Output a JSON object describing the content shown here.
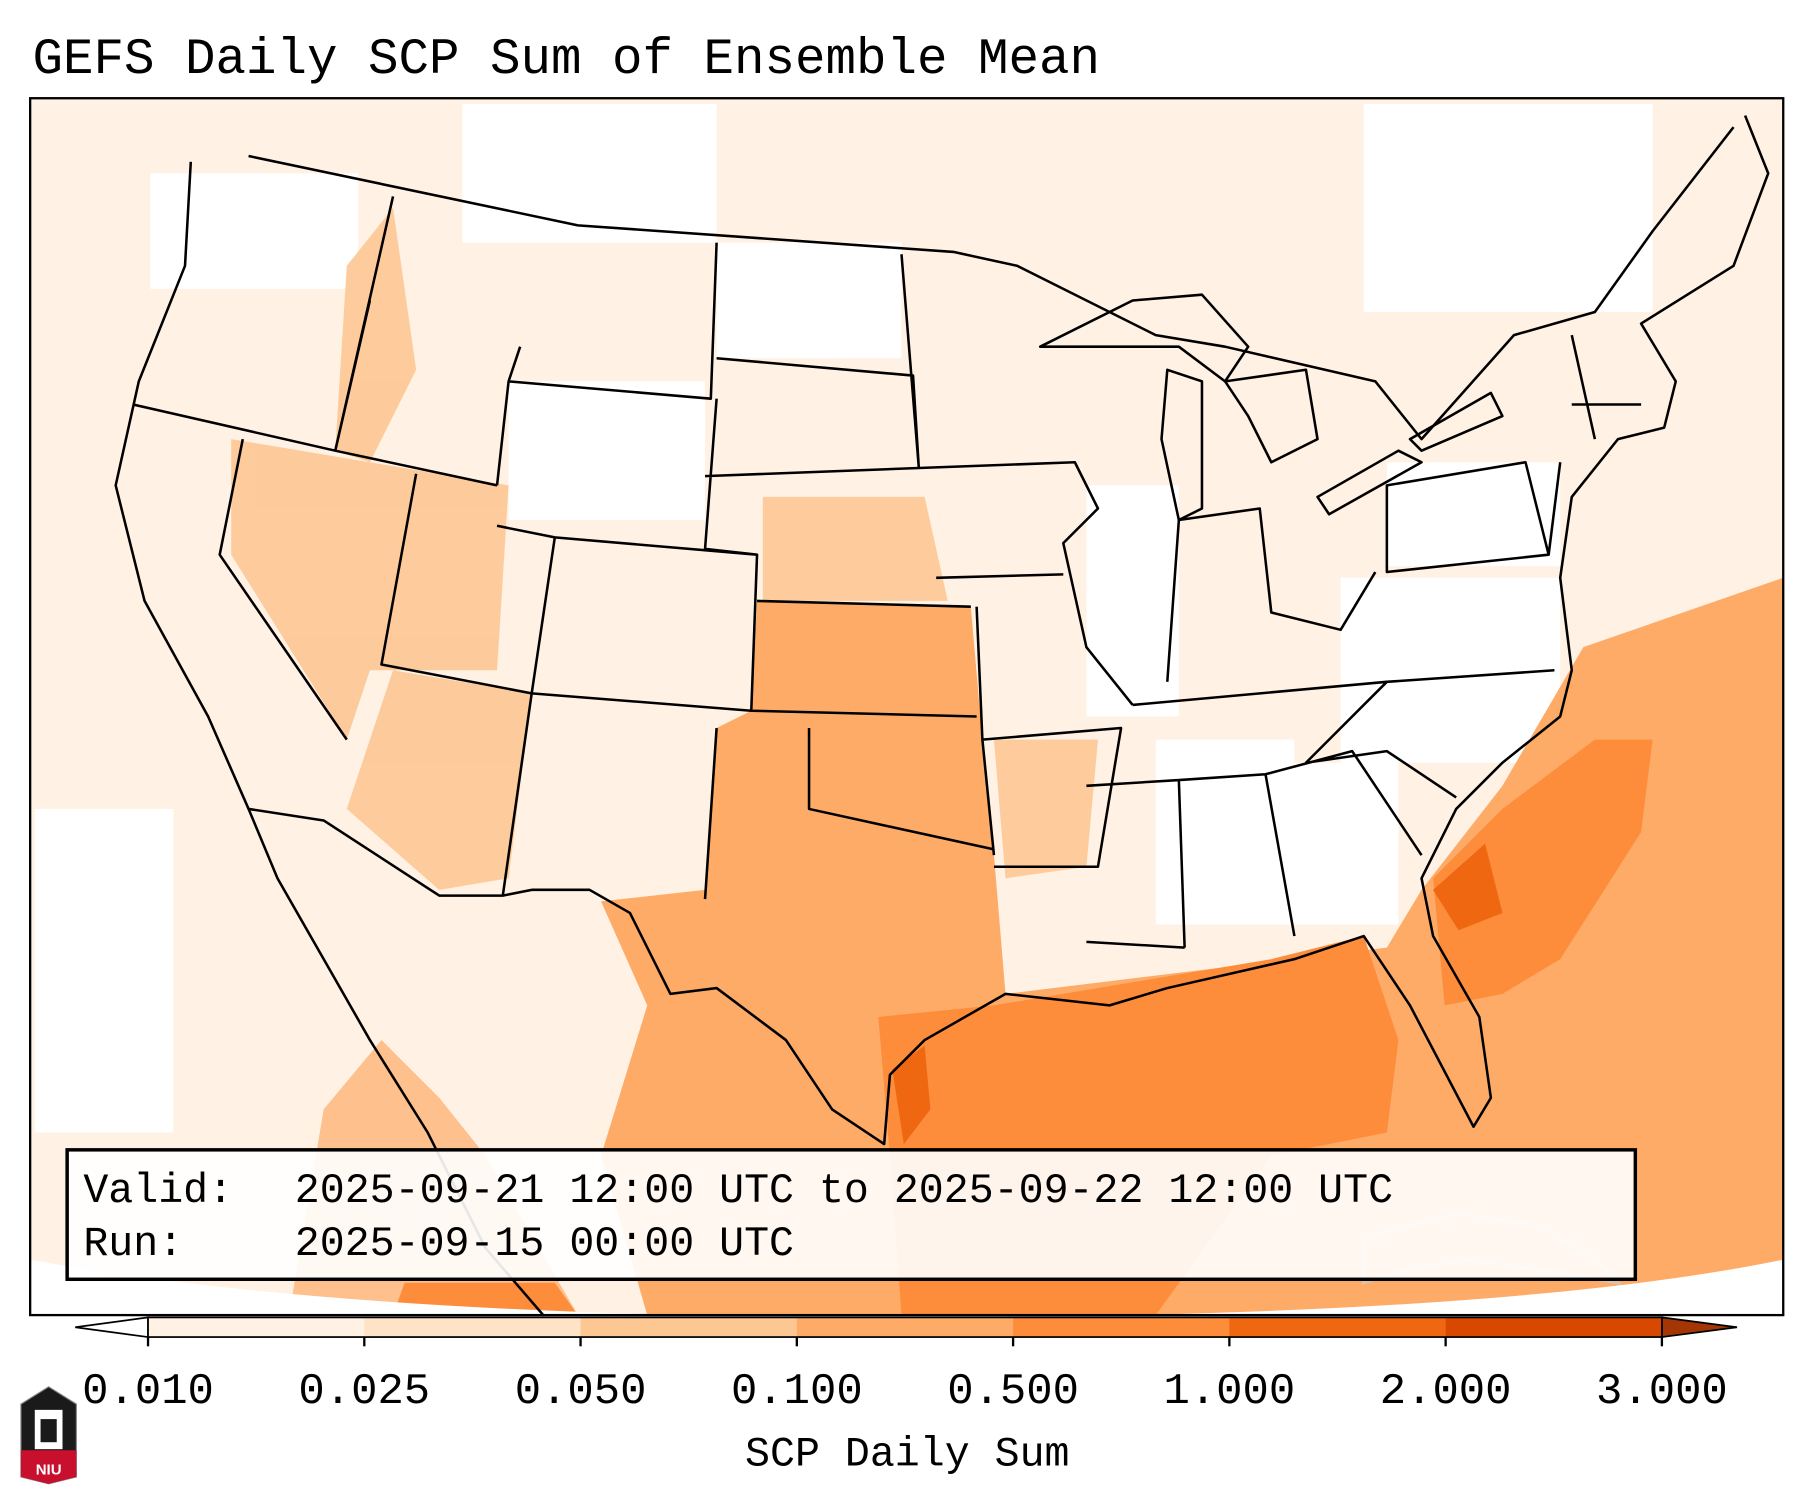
{
  "title": "GEFS Daily SCP Sum of Ensemble Mean",
  "info_box": {
    "valid_label": "Valid:",
    "valid_value": "2025-09-21 12:00 UTC to 2025-09-22 12:00 UTC",
    "run_label": "Run:",
    "run_value": "2025-09-15 00:00 UTC"
  },
  "logo": {
    "text": "NIU"
  },
  "chart_data": {
    "type": "heatmap",
    "title": "GEFS Daily SCP Sum of Ensemble Mean",
    "region": "Continental United States",
    "colorbar": {
      "label": "SCP Daily Sum",
      "ticks": [
        "0.010",
        "0.025",
        "0.050",
        "0.100",
        "0.500",
        "1.000",
        "2.000",
        "3.000"
      ],
      "levels": [
        0.01,
        0.025,
        0.05,
        0.1,
        0.5,
        1.0,
        2.0,
        3.0
      ],
      "colors": [
        "#fff1e3",
        "#fee3c8",
        "#fdc794",
        "#fdab67",
        "#fd8c3b",
        "#f06712",
        "#d84801"
      ],
      "extend": "both",
      "under_color": "#ffffff",
      "over_color": "#a33603"
    },
    "features": [
      {
        "area": "Southern Plains (Texas, Oklahoma, Kansas)",
        "range": "0.100-0.500"
      },
      {
        "area": "Gulf Coast / Gulf of Mexico",
        "range": "0.500-1.000"
      },
      {
        "area": "Southeast Atlantic coast (Georgia / South Carolina offshore)",
        "range": "1.000-2.000"
      },
      {
        "area": "Upper Texas coast",
        "range": "1.000-2.000"
      },
      {
        "area": "Northeast / Great Lakes / Northern Plains",
        "range": "0.010-0.050"
      }
    ]
  }
}
